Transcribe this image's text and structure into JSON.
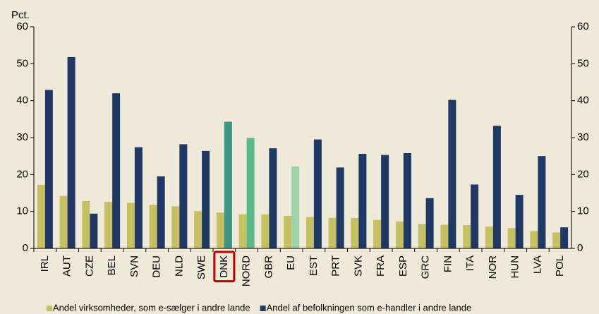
{
  "chart_data": {
    "type": "bar",
    "y_label": "Pct.",
    "categories": [
      "IRL",
      "AUT",
      "CZE",
      "BEL",
      "SVN",
      "DEU",
      "NLD",
      "SWE",
      "DNK",
      "NORD",
      "GBR",
      "EU",
      "EST",
      "PRT",
      "SVK",
      "FRA",
      "ESP",
      "GRC",
      "FIN",
      "ITA",
      "NOR",
      "HUN",
      "LVA",
      "POL"
    ],
    "series": [
      {
        "name": "Andel virksomheder, som e-sælger i andre lande",
        "color": "#c7c062",
        "values": [
          17.2,
          14.2,
          12.8,
          12.6,
          12.3,
          11.8,
          11.4,
          10.1,
          9.7,
          9.2,
          9.2,
          8.8,
          8.5,
          8.3,
          8.2,
          7.7,
          7.3,
          6.6,
          6.4,
          6.3,
          5.9,
          5.5,
          4.7,
          4.3
        ]
      },
      {
        "name": "Andel af befolkningen som e-handler i andre lande",
        "color": "#1f3864",
        "point_colors": [
          null,
          null,
          null,
          null,
          null,
          null,
          null,
          null,
          "#3a9882",
          "#5cb98a",
          null,
          "#9ed3a9",
          null,
          null,
          null,
          null,
          null,
          null,
          null,
          null,
          null,
          null,
          null,
          null
        ],
        "values": [
          42.9,
          51.8,
          9.4,
          42.0,
          27.4,
          19.5,
          28.2,
          26.4,
          34.3,
          29.9,
          27.1,
          22.2,
          29.5,
          21.9,
          25.6,
          25.3,
          25.8,
          13.6,
          40.2,
          17.3,
          33.2,
          14.5,
          25.0,
          5.7
        ]
      }
    ],
    "highlight": "DNK",
    "ylim": [
      0,
      60
    ],
    "yticks": [
      0,
      10,
      20,
      30,
      40,
      50,
      60
    ],
    "y2lim": [
      0,
      60
    ],
    "y2ticks": [
      0,
      10,
      20,
      30,
      40,
      50,
      60
    ],
    "legend": "bottom"
  }
}
